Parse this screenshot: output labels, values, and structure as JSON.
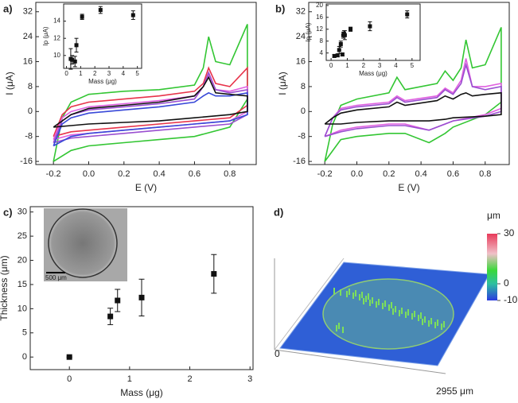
{
  "chart_data": [
    {
      "type": "cv",
      "label": "a)",
      "xlabel": "E (V)",
      "ylabel": "I (μA)",
      "xlim": [
        -0.3,
        0.95
      ],
      "ylim": [
        -17,
        35
      ],
      "xticks": [
        -0.2,
        {
          "value": 0,
          "label": "0.0"
        },
        0.2,
        0.4,
        0.6,
        0.8
      ],
      "yticks": [
        -16,
        -8,
        0,
        8,
        16,
        24,
        32
      ],
      "x": [
        -0.2,
        -0.15,
        -0.1,
        0,
        0.2,
        0.4,
        0.6,
        0.65,
        0.68,
        0.72,
        0.8,
        0.9,
        0.9,
        0.8,
        0.6,
        0.4,
        0.2,
        0,
        -0.1,
        -0.2
      ],
      "series": [
        {
          "color": "#33c633",
          "values": [
            -16,
            -2,
            3,
            5.5,
            6.5,
            7,
            8.5,
            14,
            24,
            16,
            15,
            28,
            4,
            -5,
            -8,
            -9,
            -10,
            -11,
            -12.5,
            -16
          ]
        },
        {
          "color": "#e8334a",
          "values": [
            -8,
            -1,
            1.5,
            3,
            4,
            5,
            6.5,
            9,
            14,
            9,
            8,
            14,
            2,
            -2,
            -3,
            -4,
            -5,
            -6,
            -6.5,
            -8
          ]
        },
        {
          "color": "#e060e0",
          "values": [
            -9,
            -2,
            0,
            1.5,
            2.5,
            3.5,
            5,
            8,
            12,
            7,
            6.5,
            8,
            0,
            -3,
            -4,
            -5,
            -6,
            -7,
            -7.5,
            -9
          ]
        },
        {
          "color": "#9a4fd0",
          "values": [
            -10,
            -3,
            -1,
            0.5,
            1.5,
            2.5,
            4,
            8,
            12.5,
            7,
            6,
            7,
            -1,
            -4,
            -5,
            -6,
            -7,
            -8,
            -8.5,
            -10
          ]
        },
        {
          "color": "#3848d8",
          "values": [
            -11,
            -4,
            -2,
            -0.5,
            0.5,
            1.5,
            3,
            5,
            6,
            5,
            5,
            6,
            -1,
            -3,
            -4,
            -5,
            -6,
            -7,
            -8,
            -11
          ]
        },
        {
          "color": "#111111",
          "values": [
            -5,
            -3,
            -1,
            1,
            2,
            3,
            5,
            8,
            11,
            6,
            5.5,
            5,
            0,
            -1,
            -2,
            -3,
            -3.5,
            -4,
            -4.5,
            -5
          ]
        }
      ],
      "inset": {
        "type": "scatter",
        "xlabel": "Mass (μg)",
        "ylabel": "Ip (μA)",
        "xlim": [
          -0.2,
          5.3
        ],
        "ylim": [
          8.5,
          16
        ],
        "xticks": [
          0,
          1,
          2,
          3,
          4,
          5
        ],
        "yticks": [
          10,
          12,
          14
        ],
        "x": [
          0.3,
          0.4,
          0.6,
          0.7,
          1.1,
          2.4,
          4.7
        ],
        "values": [
          9.6,
          9.5,
          9.3,
          11.2,
          14.5,
          15.3,
          14.7
        ],
        "errors": [
          1.2,
          0.5,
          0.6,
          0.8,
          0.3,
          0.4,
          0.5
        ],
        "color": "#111111"
      }
    },
    {
      "type": "cv",
      "label": "b)",
      "xlabel": "E (V)",
      "ylabel": "I (μA)",
      "xlim": [
        -0.3,
        0.95
      ],
      "ylim": [
        -17,
        35
      ],
      "xticks": [
        -0.2,
        {
          "value": 0,
          "label": "0.0"
        },
        0.2,
        0.4,
        0.6,
        0.8
      ],
      "yticks": [
        -16,
        -8,
        0,
        8,
        16,
        24,
        32
      ],
      "x": [
        -0.2,
        -0.15,
        -0.1,
        0,
        0.2,
        0.25,
        0.3,
        0.5,
        0.55,
        0.6,
        0.65,
        0.68,
        0.72,
        0.8,
        0.9,
        0.9,
        0.8,
        0.6,
        0.55,
        0.45,
        0.3,
        0.2,
        0,
        -0.1,
        -0.2
      ],
      "series": [
        {
          "color": "#33c633",
          "values": [
            -16,
            -4,
            2,
            4,
            6,
            11,
            7,
            9,
            13,
            10,
            14,
            23,
            14,
            15,
            27,
            3,
            -1,
            -5,
            -7,
            -10,
            -7,
            -7,
            -8,
            -9,
            -16
          ]
        },
        {
          "color": "#e060e0",
          "values": [
            -8,
            -2,
            1,
            2,
            3,
            5,
            3.5,
            5,
            7.5,
            6,
            10,
            17,
            8,
            8,
            9,
            1,
            -1,
            -3,
            -4,
            -6,
            -4,
            -4,
            -5,
            -6,
            -8
          ]
        },
        {
          "color": "#9a4fd0",
          "values": [
            -8,
            -2,
            0.5,
            1.5,
            2.5,
            4.5,
            3,
            4.5,
            7,
            5.5,
            9,
            15,
            8,
            7,
            8,
            0,
            -1.5,
            -3,
            -4,
            -6,
            -4.5,
            -4.5,
            -5.5,
            -6.5,
            -8
          ]
        },
        {
          "color": "#111111",
          "values": [
            -4,
            -2,
            -0.5,
            0.5,
            1.5,
            3,
            2,
            3.5,
            5,
            4,
            5.5,
            6,
            5,
            5.5,
            6,
            -1,
            -1.5,
            -2,
            -2.5,
            -3,
            -3,
            -3,
            -3.5,
            -4,
            -4
          ]
        }
      ],
      "inset": {
        "type": "scatter",
        "xlabel": "Mass (μg)",
        "ylabel": "Ip (μA)",
        "xlim": [
          -0.3,
          5.5
        ],
        "ylim": [
          1.5,
          20.5
        ],
        "xticks": [
          0,
          1,
          2,
          3,
          4,
          5
        ],
        "yticks": [
          4,
          8,
          12,
          16,
          20
        ],
        "x": [
          0.2,
          0.4,
          0.5,
          0.6,
          0.7,
          0.75,
          0.8,
          0.85,
          1.2,
          2.4,
          4.7
        ],
        "values": [
          3,
          3.2,
          5,
          7,
          3.5,
          10,
          10.5,
          10,
          12,
          13,
          17
        ],
        "errors": [
          0.5,
          0.4,
          1.2,
          1,
          0.5,
          1,
          1,
          1.5,
          0.7,
          1.5,
          1.2
        ],
        "color": "#111111"
      }
    },
    {
      "type": "scatter",
      "label": "c)",
      "xlabel": "Mass (μg)",
      "ylabel": "Thickness (μm)",
      "xlim": [
        -0.65,
        3.05
      ],
      "ylim": [
        -2.6,
        31.1
      ],
      "xticks": [
        0,
        1,
        2,
        3
      ],
      "yticks": [
        0,
        5,
        10,
        15,
        20,
        25,
        30
      ],
      "x": [
        0,
        0.68,
        0.8,
        1.2,
        2.4
      ],
      "values": [
        0,
        8.4,
        11.7,
        12.3,
        17.2
      ],
      "errors": [
        0,
        1.7,
        2.3,
        3.8,
        4
      ],
      "color": "#111111",
      "inset_scale_label": "500 μm"
    },
    {
      "type": "surface",
      "label": "d)",
      "unit": "μm",
      "zlim": [
        -10,
        30
      ],
      "zticks": [
        30,
        0,
        -10
      ],
      "axis_start_label": "0",
      "axis_end_label": "2955 μm"
    }
  ]
}
